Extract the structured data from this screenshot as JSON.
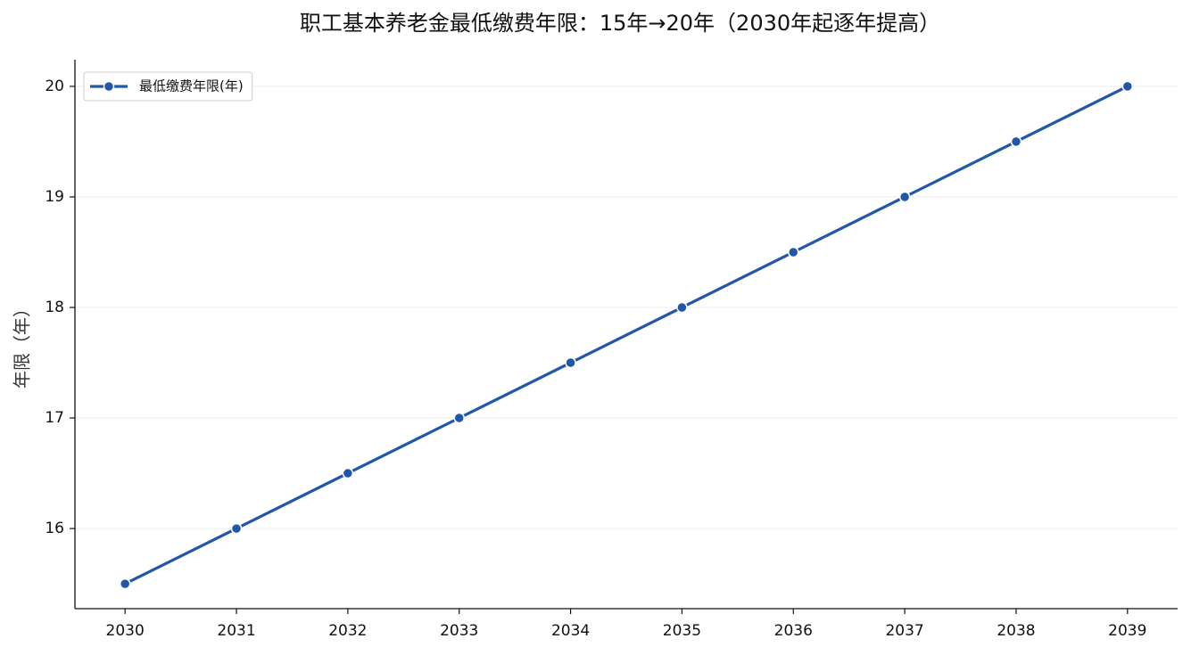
{
  "chart_data": {
    "type": "line",
    "title": "职工基本养老金最低缴费年限：15年→20年（2030年起逐年提高）",
    "ylabel": "年限（年）",
    "x": [
      2030,
      2031,
      2032,
      2033,
      2034,
      2035,
      2036,
      2037,
      2038,
      2039
    ],
    "series": [
      {
        "name": "最低缴费年限(年)",
        "color": "#2057a8",
        "values": [
          15.5,
          16,
          16.5,
          17,
          17.5,
          18,
          18.5,
          19,
          19.5,
          20
        ]
      }
    ],
    "xlim": [
      2029.55,
      2039.45
    ],
    "xticks": [
      2030,
      2031,
      2032,
      2033,
      2034,
      2035,
      2036,
      2037,
      2038,
      2039
    ],
    "ylim": [
      15.275,
      20.225
    ],
    "yticks": [
      16,
      17,
      18,
      19,
      20
    ],
    "grid": true,
    "legend": "upper left"
  }
}
